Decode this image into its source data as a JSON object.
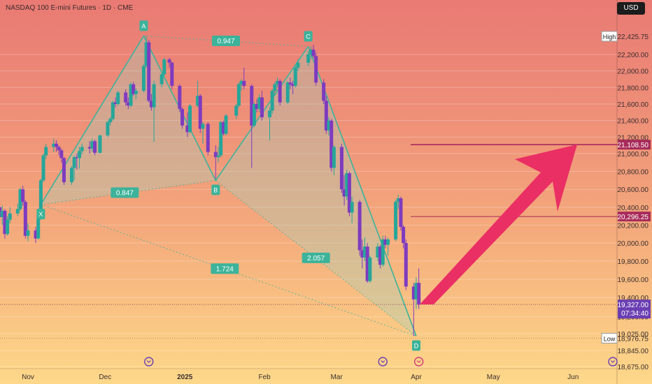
{
  "header": {
    "title": "NASDAQ 100 E-mini Futures · 1D · CME",
    "currency": "USD"
  },
  "colors": {
    "up": "#26a69a",
    "down": "#7e3bbf",
    "pattern": "#3cb39a",
    "level": "#a82b5a",
    "arrow": "#ea2f64",
    "axis_text": "#3a2f2f"
  },
  "chart_data": {
    "type": "candlestick",
    "y_ticks": [
      "22,200.00",
      "22,000.00",
      "21,800.00",
      "21,600.00",
      "21,400.00",
      "21,200.00",
      "21,000.00",
      "20,800.00",
      "20,600.00",
      "20,400.00",
      "20,200.00",
      "20,000.00",
      "19,800.00",
      "19,600.00",
      "19,400.00",
      "19,200.00",
      "19,025.00",
      "18,845.00",
      "18,675.00"
    ],
    "x_ticks": [
      "Nov",
      "Dec",
      "2025",
      "Feb",
      "Mar",
      "Apr",
      "May",
      "Jun"
    ],
    "ylim": [
      18600,
      22600
    ],
    "high": {
      "label": "High",
      "value": "22,425.75"
    },
    "low": {
      "label": "Low",
      "value": "18,976.75"
    },
    "current": {
      "value": "19,327.00",
      "countdown": "07:34:40"
    },
    "levels": [
      {
        "value": "21,108.50",
        "style": "bold"
      },
      {
        "value": "20,296.25",
        "style": "thin"
      }
    ],
    "harmonic_points": [
      {
        "label": "X",
        "date": "2024-11-06",
        "price": 20430
      },
      {
        "label": "A",
        "date": "2024-12-16",
        "price": 22430
      },
      {
        "label": "B",
        "date": "2025-01-13",
        "price": 20700
      },
      {
        "label": "C",
        "date": "2025-02-18",
        "price": 22300
      },
      {
        "label": "D",
        "date": "2025-04-01",
        "price": 19000
      }
    ],
    "ratios": [
      "0.947",
      "0.847",
      "1.724",
      "2.057"
    ],
    "candles": [
      [
        "2024-10-21",
        20400,
        20460,
        20260,
        20290
      ],
      [
        "2024-10-22",
        20290,
        20420,
        20200,
        20360
      ],
      [
        "2024-10-23",
        20360,
        20380,
        20050,
        20100
      ],
      [
        "2024-10-24",
        20100,
        20300,
        20080,
        20260
      ],
      [
        "2024-10-25",
        20260,
        20400,
        20220,
        20330
      ],
      [
        "2024-10-28",
        20330,
        20440,
        20300,
        20380
      ],
      [
        "2024-10-29",
        20380,
        20620,
        20360,
        20600
      ],
      [
        "2024-10-30",
        20600,
        20640,
        20420,
        20460
      ],
      [
        "2024-10-31",
        20460,
        20480,
        20050,
        20080
      ],
      [
        "2024-11-01",
        20080,
        20220,
        20020,
        20140
      ],
      [
        "2024-11-04",
        20140,
        20180,
        20000,
        20050
      ],
      [
        "2024-11-05",
        20050,
        20300,
        20040,
        20280
      ],
      [
        "2024-11-06",
        20280,
        20720,
        20260,
        20700
      ],
      [
        "2024-11-07",
        20700,
        21000,
        20680,
        20980
      ],
      [
        "2024-11-08",
        20980,
        21120,
        20940,
        21080
      ],
      [
        "2024-11-11",
        21080,
        21180,
        21020,
        21120
      ],
      [
        "2024-11-12",
        21120,
        21160,
        21020,
        21080
      ],
      [
        "2024-11-13",
        21080,
        21100,
        20980,
        21040
      ],
      [
        "2024-11-14",
        21040,
        21060,
        20900,
        20950
      ],
      [
        "2024-11-15",
        20950,
        20960,
        20650,
        20680
      ],
      [
        "2024-11-18",
        20680,
        20860,
        20650,
        20840
      ],
      [
        "2024-11-19",
        20840,
        20980,
        20700,
        20960
      ],
      [
        "2024-11-20",
        20960,
        21000,
        20820,
        20950
      ],
      [
        "2024-11-21",
        20950,
        21080,
        20830,
        21030
      ],
      [
        "2024-11-22",
        21030,
        21120,
        20990,
        21080
      ],
      [
        "2024-11-25",
        21080,
        21150,
        21000,
        21060
      ],
      [
        "2024-11-26",
        21060,
        21180,
        21020,
        21150
      ],
      [
        "2024-11-27",
        21150,
        21170,
        20980,
        21010
      ],
      [
        "2024-11-29",
        21010,
        21230,
        21000,
        21220
      ],
      [
        "2024-12-02",
        21220,
        21400,
        21200,
        21380
      ],
      [
        "2024-12-03",
        21380,
        21440,
        21340,
        21420
      ],
      [
        "2024-12-04",
        21420,
        21640,
        21400,
        21620
      ],
      [
        "2024-12-05",
        21620,
        21680,
        21560,
        21600
      ],
      [
        "2024-12-06",
        21600,
        21760,
        21580,
        21740
      ],
      [
        "2024-12-09",
        21740,
        21780,
        21580,
        21620
      ],
      [
        "2024-12-10",
        21620,
        21680,
        21540,
        21580
      ],
      [
        "2024-12-11",
        21580,
        21860,
        21560,
        21840
      ],
      [
        "2024-12-12",
        21840,
        21870,
        21700,
        21720
      ],
      [
        "2024-12-13",
        21720,
        21790,
        21660,
        21760
      ],
      [
        "2024-12-16",
        21760,
        22080,
        21740,
        22060
      ],
      [
        "2024-12-17",
        22060,
        22430,
        22040,
        22350
      ],
      [
        "2024-12-18",
        22350,
        22380,
        21620,
        21640
      ],
      [
        "2024-12-19",
        21640,
        21720,
        21520,
        21560
      ],
      [
        "2024-12-20",
        21560,
        21880,
        21140,
        21840
      ],
      [
        "2024-12-23",
        21840,
        21980,
        21800,
        21960
      ],
      [
        "2024-12-24",
        21960,
        22160,
        21940,
        22140
      ],
      [
        "2024-12-26",
        22140,
        22160,
        22040,
        22100
      ],
      [
        "2024-12-27",
        22100,
        22110,
        21780,
        21820
      ],
      [
        "2024-12-30",
        21820,
        21840,
        21500,
        21540
      ],
      [
        "2024-12-31",
        21540,
        21560,
        21300,
        21340
      ],
      [
        "2025-01-02",
        21340,
        21500,
        21200,
        21260
      ],
      [
        "2025-01-03",
        21260,
        21600,
        21250,
        21580
      ],
      [
        "2025-01-06",
        21580,
        21880,
        21560,
        21700
      ],
      [
        "2025-01-07",
        21700,
        21720,
        21250,
        21300
      ],
      [
        "2025-01-08",
        21300,
        21380,
        21120,
        21360
      ],
      [
        "2025-01-10",
        21360,
        21380,
        20980,
        21020
      ],
      [
        "2025-01-13",
        21020,
        21100,
        20720,
        20960
      ],
      [
        "2025-01-14",
        20960,
        21080,
        20900,
        20980
      ],
      [
        "2025-01-15",
        20980,
        21400,
        20960,
        21380
      ],
      [
        "2025-01-16",
        21380,
        21400,
        21220,
        21240
      ],
      [
        "2025-01-17",
        21240,
        21480,
        21220,
        21460
      ],
      [
        "2025-01-21",
        21460,
        21600,
        21420,
        21580
      ],
      [
        "2025-01-22",
        21580,
        21860,
        21560,
        21840
      ],
      [
        "2025-01-23",
        21840,
        21900,
        21760,
        21880
      ],
      [
        "2025-01-24",
        21880,
        22040,
        21780,
        21820
      ],
      [
        "2025-01-27",
        21820,
        21840,
        20840,
        21340
      ],
      [
        "2025-01-28",
        21340,
        21620,
        21320,
        21600
      ],
      [
        "2025-01-29",
        21600,
        21660,
        21500,
        21540
      ],
      [
        "2025-01-30",
        21540,
        21720,
        21500,
        21680
      ],
      [
        "2025-01-31",
        21680,
        21760,
        21400,
        21440
      ],
      [
        "2025-02-03",
        21440,
        21560,
        21160,
        21520
      ],
      [
        "2025-02-04",
        21520,
        21780,
        21480,
        21760
      ],
      [
        "2025-02-05",
        21760,
        21860,
        21700,
        21840
      ],
      [
        "2025-02-06",
        21840,
        21920,
        21800,
        21880
      ],
      [
        "2025-02-07",
        21880,
        21900,
        21580,
        21620
      ],
      [
        "2025-02-10",
        21620,
        21880,
        21600,
        21860
      ],
      [
        "2025-02-11",
        21860,
        21920,
        21780,
        21840
      ],
      [
        "2025-02-12",
        21840,
        21880,
        21720,
        21820
      ],
      [
        "2025-02-13",
        21820,
        22060,
        21800,
        22040
      ],
      [
        "2025-02-14",
        22040,
        22140,
        22000,
        22100
      ],
      [
        "2025-02-18",
        22100,
        22240,
        22060,
        22200
      ],
      [
        "2025-02-19",
        22200,
        22300,
        22140,
        22260
      ],
      [
        "2025-02-20",
        22260,
        22320,
        22160,
        22180
      ],
      [
        "2025-02-21",
        22180,
        22220,
        21820,
        21860
      ],
      [
        "2025-02-24",
        21860,
        21900,
        21600,
        21640
      ],
      [
        "2025-02-25",
        21640,
        21700,
        21240,
        21280
      ],
      [
        "2025-02-26",
        21280,
        21440,
        21220,
        21400
      ],
      [
        "2025-02-27",
        21400,
        21420,
        20800,
        20840
      ],
      [
        "2025-02-28",
        20840,
        21100,
        20760,
        21080
      ],
      [
        "2025-03-03",
        21080,
        21120,
        20560,
        20600
      ],
      [
        "2025-03-04",
        20600,
        20760,
        20420,
        20520
      ],
      [
        "2025-03-05",
        20520,
        20820,
        20480,
        20780
      ],
      [
        "2025-03-06",
        20780,
        20800,
        20300,
        20340
      ],
      [
        "2025-03-07",
        20340,
        20520,
        20220,
        20460
      ],
      [
        "2025-03-10",
        20460,
        20480,
        19860,
        19920
      ],
      [
        "2025-03-11",
        19920,
        20040,
        19720,
        19840
      ],
      [
        "2025-03-12",
        19840,
        20060,
        19800,
        19960
      ],
      [
        "2025-03-13",
        19960,
        20000,
        19560,
        19580
      ],
      [
        "2025-03-14",
        19580,
        19860,
        19560,
        19840
      ],
      [
        "2025-03-17",
        19840,
        20000,
        19800,
        19960
      ],
      [
        "2025-03-18",
        19960,
        19980,
        19720,
        19760
      ],
      [
        "2025-03-19",
        19760,
        20080,
        19740,
        20040
      ],
      [
        "2025-03-20",
        20040,
        20080,
        19940,
        19980
      ],
      [
        "2025-03-21",
        19980,
        20060,
        19860,
        20040
      ],
      [
        "2025-03-24",
        20040,
        20480,
        20020,
        20460
      ],
      [
        "2025-03-25",
        20460,
        20540,
        20380,
        20500
      ],
      [
        "2025-03-26",
        20500,
        20520,
        20140,
        20180
      ],
      [
        "2025-03-27",
        20180,
        20200,
        19940,
        20000
      ],
      [
        "2025-03-28",
        20000,
        20040,
        19480,
        19520
      ],
      [
        "2025-03-31",
        19520,
        19560,
        19000,
        19380
      ],
      [
        "2025-04-01",
        19380,
        19620,
        19280,
        19560
      ],
      [
        "2025-04-02",
        19560,
        19720,
        19280,
        19327
      ]
    ]
  }
}
